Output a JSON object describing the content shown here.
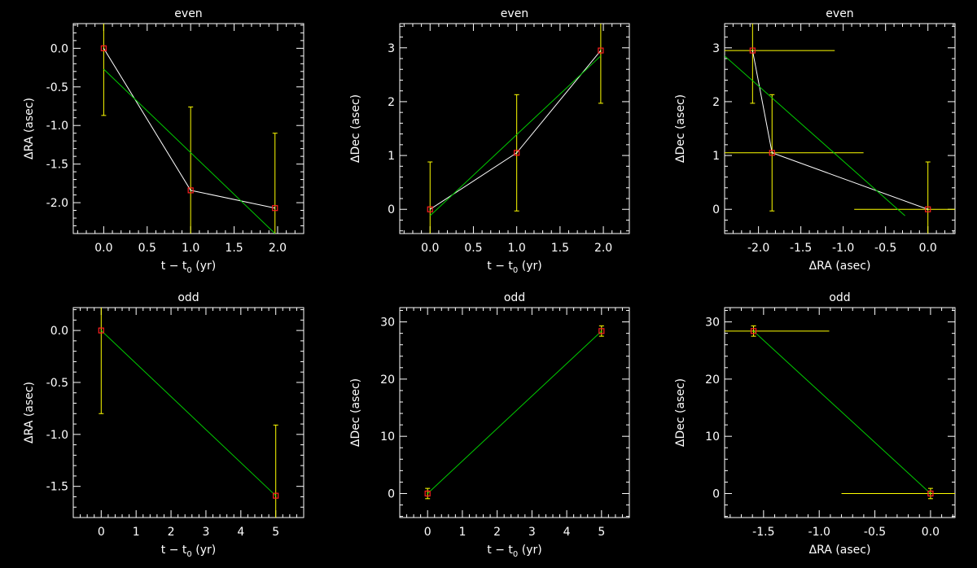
{
  "colors": {
    "background": "#000000",
    "axes": "#ffffff",
    "data_line": "#ffffff",
    "fit_line": "#00cc00",
    "error_bar": "#ffff00",
    "marker": "#ff2020"
  },
  "chart_data": [
    {
      "type": "scatter",
      "title": "even",
      "xlabel_main": "t − t",
      "xlabel_sub": "0",
      "xlabel_tail": " (yr)",
      "ylabel_prefix": "Δ",
      "ylabel": "RA (asec)",
      "xlim": [
        -0.35,
        2.3
      ],
      "ylim": [
        -2.4,
        0.32
      ],
      "xticks": [
        0,
        0.5,
        1,
        1.5,
        2
      ],
      "xtick_labels": [
        "0.0",
        "0.5",
        "1.0",
        "1.5",
        "2.0"
      ],
      "yticks": [
        0,
        -0.5,
        -1,
        -1.5,
        -2
      ],
      "ytick_labels": [
        "0.0",
        "-0.5",
        "-1.0",
        "-1.5",
        "-2.0"
      ],
      "points": [
        [
          0,
          0
        ],
        [
          1,
          -1.84
        ],
        [
          1.97,
          -2.07
        ]
      ],
      "yerr": [
        0.87,
        1.08,
        0.97
      ],
      "xerr": [
        0,
        0,
        0
      ],
      "fit": [
        [
          0,
          -0.27
        ],
        [
          1.97,
          -2.4
        ]
      ]
    },
    {
      "type": "scatter",
      "title": "even",
      "xlabel_main": "t − t",
      "xlabel_sub": "0",
      "xlabel_tail": " (yr)",
      "ylabel_prefix": "Δ",
      "ylabel": "Dec (asec)",
      "xlim": [
        -0.35,
        2.3
      ],
      "ylim": [
        -0.45,
        3.45
      ],
      "xticks": [
        0,
        0.5,
        1,
        1.5,
        2
      ],
      "xtick_labels": [
        "0.0",
        "0.5",
        "1.0",
        "1.5",
        "2.0"
      ],
      "yticks": [
        0,
        1,
        2,
        3
      ],
      "ytick_labels": [
        "0",
        "1",
        "2",
        "3"
      ],
      "points": [
        [
          0,
          0
        ],
        [
          1,
          1.05
        ],
        [
          1.97,
          2.95
        ]
      ],
      "yerr": [
        0.88,
        1.08,
        0.98
      ],
      "xerr": [
        0,
        0,
        0
      ],
      "fit": [
        [
          0,
          -0.12
        ],
        [
          1.97,
          2.85
        ]
      ]
    },
    {
      "type": "scatter",
      "title": "even",
      "xlabel_main": "ΔRA (asec)",
      "xlabel_sub": "",
      "xlabel_tail": "",
      "ylabel_prefix": "Δ",
      "ylabel": "Dec (asec)",
      "xlim": [
        -2.4,
        0.32
      ],
      "ylim": [
        -0.45,
        3.45
      ],
      "xticks": [
        -2,
        -1.5,
        -1,
        -0.5,
        0
      ],
      "xtick_labels": [
        "-2.0",
        "-1.5",
        "-1.0",
        "-0.5",
        "0.0"
      ],
      "yticks": [
        0,
        1,
        2,
        3
      ],
      "ytick_labels": [
        "0",
        "1",
        "2",
        "3"
      ],
      "points": [
        [
          -2.07,
          2.95
        ],
        [
          -1.84,
          1.05
        ],
        [
          0,
          0
        ]
      ],
      "yerr": [
        0.98,
        1.08,
        0.88
      ],
      "xerr": [
        0.97,
        1.08,
        0.87
      ],
      "fit": [
        [
          -2.4,
          2.85
        ],
        [
          -0.27,
          -0.12
        ]
      ]
    },
    {
      "type": "scatter",
      "title": "odd",
      "xlabel_main": "t − t",
      "xlabel_sub": "0",
      "xlabel_tail": " (yr)",
      "ylabel_prefix": "Δ",
      "ylabel": "RA (asec)",
      "xlim": [
        -0.8,
        5.8
      ],
      "ylim": [
        -1.8,
        0.22
      ],
      "xticks": [
        0,
        1,
        2,
        3,
        4,
        5
      ],
      "xtick_labels": [
        "0",
        "1",
        "2",
        "3",
        "4",
        "5"
      ],
      "yticks": [
        0,
        -0.5,
        -1,
        -1.5
      ],
      "ytick_labels": [
        "0.0",
        "-0.5",
        "-1.0",
        "-1.5"
      ],
      "points": [
        [
          0,
          0
        ],
        [
          5,
          -1.59
        ]
      ],
      "yerr": [
        0.8,
        0.68
      ],
      "xerr": [
        0,
        0
      ],
      "fit": [
        [
          0,
          0
        ],
        [
          5,
          -1.59
        ]
      ]
    },
    {
      "type": "scatter",
      "title": "odd",
      "xlabel_main": "t − t",
      "xlabel_sub": "0",
      "xlabel_tail": " (yr)",
      "ylabel_prefix": "Δ",
      "ylabel": "Dec (asec)",
      "xlim": [
        -0.8,
        5.8
      ],
      "ylim": [
        -4.2,
        32.5
      ],
      "xticks": [
        0,
        1,
        2,
        3,
        4,
        5
      ],
      "xtick_labels": [
        "0",
        "1",
        "2",
        "3",
        "4",
        "5"
      ],
      "yticks": [
        0,
        10,
        20,
        30
      ],
      "ytick_labels": [
        "0",
        "10",
        "20",
        "30"
      ],
      "points": [
        [
          0,
          0
        ],
        [
          5,
          28.4
        ]
      ],
      "yerr": [
        0.9,
        0.9
      ],
      "xerr": [
        0,
        0
      ],
      "fit": [
        [
          0,
          0
        ],
        [
          5,
          28.4
        ]
      ]
    },
    {
      "type": "scatter",
      "title": "odd",
      "xlabel_main": "ΔRA (asec)",
      "xlabel_sub": "",
      "xlabel_tail": "",
      "ylabel_prefix": "Δ",
      "ylabel": "Dec (asec)",
      "xlim": [
        -1.85,
        0.22
      ],
      "ylim": [
        -4.2,
        32.5
      ],
      "xticks": [
        -1.5,
        -1,
        -0.5,
        0
      ],
      "xtick_labels": [
        "-1.5",
        "-1.0",
        "-0.5",
        "0.0"
      ],
      "yticks": [
        0,
        10,
        20,
        30
      ],
      "ytick_labels": [
        "0",
        "10",
        "20",
        "30"
      ],
      "points": [
        [
          -1.59,
          28.4
        ],
        [
          0,
          0
        ]
      ],
      "yerr": [
        0.9,
        0.9
      ],
      "xerr": [
        0.68,
        0.8
      ],
      "fit": [
        [
          -1.59,
          28.4
        ],
        [
          0,
          0
        ]
      ]
    }
  ]
}
